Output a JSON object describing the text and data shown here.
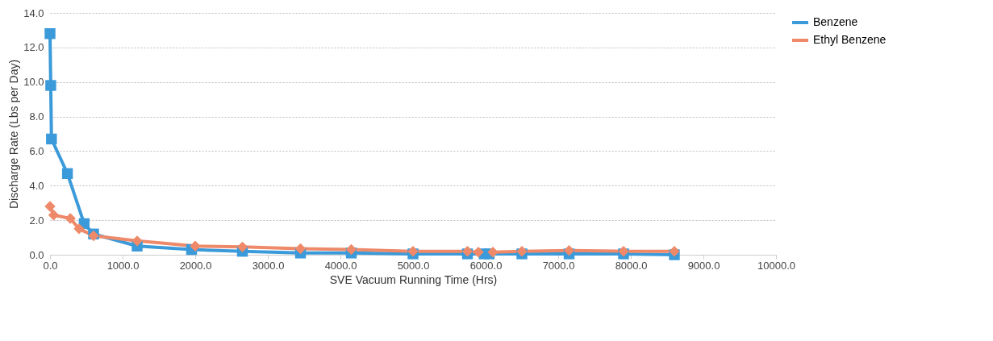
{
  "chart_data": {
    "type": "line",
    "xlabel": "SVE Vacuum Running Time (Hrs)",
    "ylabel": "Discharge Rate (Lbs per Day)",
    "xlim": [
      0,
      10000
    ],
    "xticks": [
      {
        "value": 0,
        "label": "0.0"
      },
      {
        "value": 1000,
        "label": "1000.0"
      },
      {
        "value": 2000,
        "label": "2000.0"
      },
      {
        "value": 3000,
        "label": "3000.0"
      },
      {
        "value": 4000,
        "label": "4000.0"
      },
      {
        "value": 5000,
        "label": "5000.0"
      },
      {
        "value": 6000,
        "label": "6000.0"
      },
      {
        "value": 7000,
        "label": "7000.0"
      },
      {
        "value": 8000,
        "label": "8000.0"
      },
      {
        "value": 9000,
        "label": "9000.0"
      },
      {
        "value": 10000,
        "label": "10000.0"
      }
    ],
    "ylim": [
      0,
      14
    ],
    "yticks": [
      {
        "value": 0,
        "label": "0.0"
      },
      {
        "value": 2,
        "label": "2.0"
      },
      {
        "value": 4,
        "label": "4.0"
      },
      {
        "value": 6,
        "label": "6.0"
      },
      {
        "value": 8,
        "label": "8.0"
      },
      {
        "value": 10,
        "label": "10.0"
      },
      {
        "value": 12,
        "label": "12.0"
      },
      {
        "value": 14,
        "label": "14.0"
      }
    ],
    "grid": "y",
    "legend": "right",
    "line_style": "solid",
    "series": [
      {
        "name": "Benzene",
        "color": "#3b9ad9",
        "marker": "square",
        "x": [
          0,
          10,
          20,
          240,
          470,
          600,
          1200,
          1950,
          2650,
          3450,
          4150,
          5000,
          5750,
          5980,
          6050,
          6500,
          7150,
          7900,
          8600
        ],
        "values": [
          12.8,
          9.8,
          6.7,
          4.7,
          1.8,
          1.2,
          0.5,
          0.3,
          0.2,
          0.1,
          0.1,
          0.05,
          0.05,
          0.05,
          0.05,
          0.05,
          0.05,
          0.05,
          0.0
        ]
      },
      {
        "name": "Ethyl  Benzene",
        "color": "#ee8a6a",
        "marker": "diamond",
        "x": [
          0,
          50,
          280,
          400,
          600,
          1200,
          2000,
          2650,
          3450,
          4150,
          5000,
          5750,
          5900,
          6100,
          6500,
          7150,
          7900,
          8600
        ],
        "values": [
          2.8,
          2.3,
          2.1,
          1.5,
          1.1,
          0.8,
          0.5,
          0.45,
          0.35,
          0.3,
          0.2,
          0.2,
          0.15,
          0.15,
          0.2,
          0.25,
          0.2,
          0.2
        ]
      }
    ]
  }
}
